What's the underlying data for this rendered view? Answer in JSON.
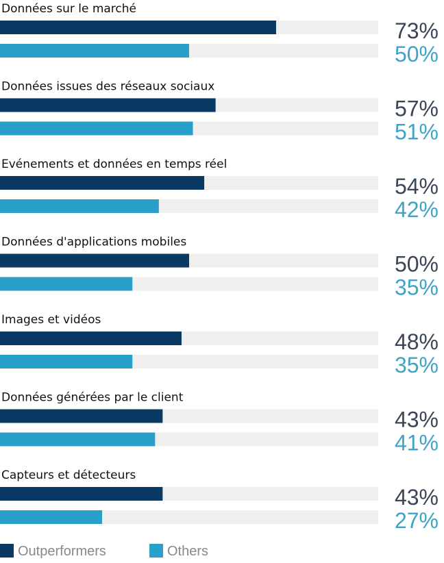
{
  "chart_data": {
    "type": "bar",
    "orientation": "horizontal",
    "categories": [
      "Données sur le marché",
      "Données issues des réseaux sociaux",
      "Evénements et données en temps réel",
      "Données d'applications mobiles",
      "Images et vidéos",
      "Données générées par le client",
      "Capteurs et détecteurs"
    ],
    "series": [
      {
        "name": "Outperformers",
        "values": [
          73,
          57,
          54,
          50,
          48,
          43,
          43
        ],
        "color": "#0a3a63"
      },
      {
        "name": "Others",
        "values": [
          50,
          51,
          42,
          35,
          35,
          41,
          27
        ],
        "color": "#2a9fc9"
      }
    ],
    "value_suffix": "%",
    "xlim": [
      0,
      100
    ],
    "track_color": "#efefef",
    "legend_position": "bottom-left",
    "grid": false
  }
}
